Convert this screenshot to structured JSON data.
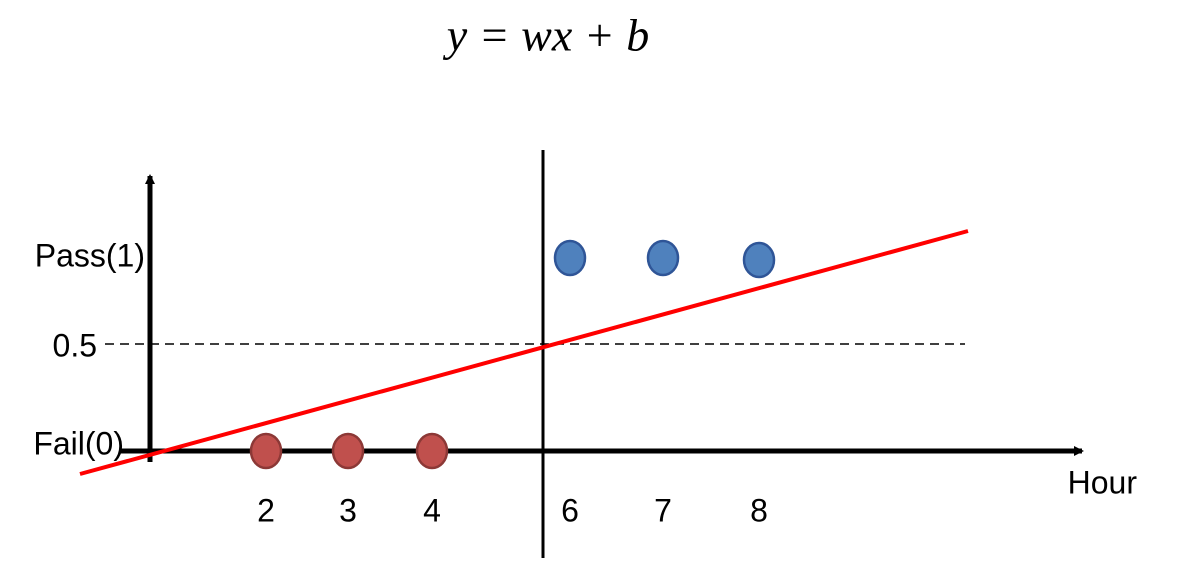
{
  "formula": "y = wx + b",
  "y_labels": [
    "Pass(1)",
    "0.5",
    "Fail(0)"
  ],
  "x_label": "Hour",
  "fail_points": [
    "2",
    "3",
    "4"
  ],
  "pass_points": [
    "6",
    "7",
    "8"
  ]
}
